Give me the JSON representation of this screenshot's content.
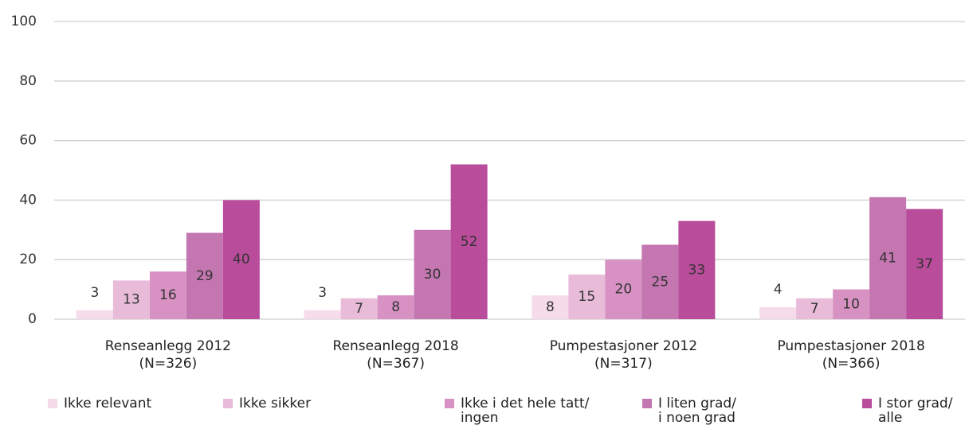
{
  "chart_data": {
    "type": "bar",
    "categories": [
      "Renseanlegg 2012\n(N=326)",
      "Renseanlegg 2018\n(N=367)",
      "Pumpestasjoner 2012\n(N=317)",
      "Pumpestasjoner 2018\n(N=366)"
    ],
    "series": [
      {
        "name": "Ikke relevant",
        "color": "#f6dcea",
        "values": [
          3,
          3,
          8,
          4
        ]
      },
      {
        "name": "Ikke sikker",
        "color": "#e8bbd9",
        "values": [
          13,
          7,
          15,
          7
        ]
      },
      {
        "name": "Ikke i det hele tatt/\ningen",
        "color": "#d792c3",
        "values": [
          16,
          8,
          20,
          10
        ]
      },
      {
        "name": "I liten grad/\ni noen grad",
        "color": "#c476b1",
        "values": [
          29,
          30,
          25,
          41
        ]
      },
      {
        "name": "I stor grad/\nalle",
        "color": "#b94c9b",
        "values": [
          40,
          52,
          33,
          37
        ]
      }
    ],
    "ylim": [
      0,
      100
    ],
    "yticks": [
      0,
      20,
      40,
      60,
      80,
      100
    ],
    "grid": true
  }
}
